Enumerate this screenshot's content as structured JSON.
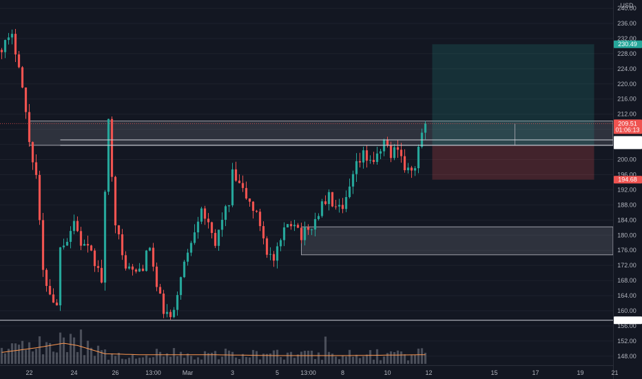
{
  "chart_data": {
    "type": "candlestick",
    "currency": "USD",
    "y_ticks": [
      148,
      152,
      156,
      160,
      164,
      168,
      172,
      176,
      180,
      184,
      188,
      192,
      196,
      200,
      204,
      208,
      212,
      216,
      220,
      224,
      228,
      232,
      236,
      240
    ],
    "y_tick_labels": [
      "148.00",
      "152.00",
      "156.00",
      "160.00",
      "164.00",
      "168.00",
      "172.00",
      "176.00",
      "180.00",
      "184.00",
      "188.00",
      "192.00",
      "196.00",
      "200.00",
      "204.00",
      "208.00",
      "212.00",
      "216.00",
      "220.00",
      "224.00",
      "228.00",
      "232.00",
      "236.00",
      "240.00"
    ],
    "ylim": [
      145.6,
      242.2
    ],
    "x_labels": [
      {
        "index": 8,
        "label": "22"
      },
      {
        "index": 21,
        "label": "24"
      },
      {
        "index": 33,
        "label": "26"
      },
      {
        "index": 44,
        "label": "13:00"
      },
      {
        "index": 54,
        "label": "Mar"
      },
      {
        "index": 67,
        "label": "3"
      },
      {
        "index": 80,
        "label": "5"
      },
      {
        "index": 89,
        "label": "13:00"
      },
      {
        "index": 99,
        "label": "8"
      },
      {
        "index": 112,
        "label": "10"
      },
      {
        "index": 124,
        "label": "12"
      },
      {
        "index": 143,
        "label": "15"
      },
      {
        "index": 155,
        "label": "17"
      },
      {
        "index": 168,
        "label": "19"
      },
      {
        "index": 178,
        "label": "21"
      }
    ],
    "candle_path": [
      [
        0,
        230
      ],
      [
        3,
        232
      ],
      [
        5,
        226
      ],
      [
        8,
        205
      ],
      [
        10,
        196
      ],
      [
        12,
        170
      ],
      [
        14,
        165
      ],
      [
        16,
        161
      ],
      [
        17,
        178
      ],
      [
        19,
        179
      ],
      [
        21,
        184
      ],
      [
        23,
        178
      ],
      [
        25,
        176
      ],
      [
        27,
        173
      ],
      [
        29,
        168
      ],
      [
        30,
        190
      ],
      [
        31,
        210
      ],
      [
        33,
        184
      ],
      [
        35,
        174
      ],
      [
        37,
        171
      ],
      [
        39,
        170
      ],
      [
        41,
        172
      ],
      [
        43,
        177
      ],
      [
        45,
        166
      ],
      [
        47,
        160
      ],
      [
        49,
        158
      ],
      [
        50,
        159
      ],
      [
        52,
        170
      ],
      [
        54,
        175
      ],
      [
        56,
        182
      ],
      [
        58,
        188
      ],
      [
        60,
        182
      ],
      [
        62,
        177
      ],
      [
        64,
        185
      ],
      [
        66,
        188
      ],
      [
        67,
        196
      ],
      [
        69,
        193
      ],
      [
        71,
        190
      ],
      [
        73,
        187
      ],
      [
        75,
        183
      ],
      [
        77,
        176
      ],
      [
        79,
        173
      ],
      [
        81,
        178
      ],
      [
        83,
        183
      ],
      [
        85,
        184
      ],
      [
        87,
        180
      ],
      [
        89,
        181
      ],
      [
        91,
        184
      ],
      [
        93,
        188
      ],
      [
        95,
        190
      ],
      [
        97,
        187
      ],
      [
        99,
        186
      ],
      [
        101,
        192
      ],
      [
        103,
        198
      ],
      [
        105,
        201
      ],
      [
        107,
        200
      ],
      [
        109,
        200
      ],
      [
        111,
        205
      ],
      [
        113,
        201
      ],
      [
        115,
        204
      ],
      [
        117,
        198
      ],
      [
        119,
        196
      ],
      [
        121,
        202
      ],
      [
        122,
        207
      ],
      [
        123,
        209.5
      ]
    ],
    "volume_path": [
      [
        0,
        0.25
      ],
      [
        10,
        0.35
      ],
      [
        18,
        0.45
      ],
      [
        22,
        0.4
      ],
      [
        30,
        0.22
      ],
      [
        40,
        0.2
      ],
      [
        60,
        0.2
      ],
      [
        80,
        0.18
      ],
      [
        100,
        0.18
      ],
      [
        123,
        0.2
      ]
    ],
    "price_lines": [
      {
        "value": 157.49,
        "label": "157.49"
      },
      {
        "value": 205.2,
        "label": "205.20"
      },
      {
        "value": 203.76,
        "label": "203.76"
      }
    ],
    "zones": [
      {
        "name": "upper-resistance-zone",
        "x1": 8,
        "x2": 178,
        "low": 203.76,
        "high": 210.2
      },
      {
        "name": "lower-demand-zone",
        "x1": 87,
        "x2": 178,
        "low": 174.8,
        "high": 182.2
      }
    ],
    "position": {
      "x1": 125,
      "x2": 172,
      "entry": 203.76,
      "target": 230.49,
      "stop": 194.68,
      "marker_index": 149
    },
    "current": {
      "value": 209.51,
      "price": "209.51",
      "countdown": "01:06:13"
    },
    "target_badge": "230.49",
    "stop_badge": "194.68",
    "colors": {
      "up": "#26a69a",
      "down": "#ef5350",
      "background": "#131722",
      "text": "#b2b5be",
      "volume": "#787b86",
      "volume_ma": "#ff9850",
      "target_fill": "#26a69a",
      "stop_fill": "#ef5350"
    }
  }
}
